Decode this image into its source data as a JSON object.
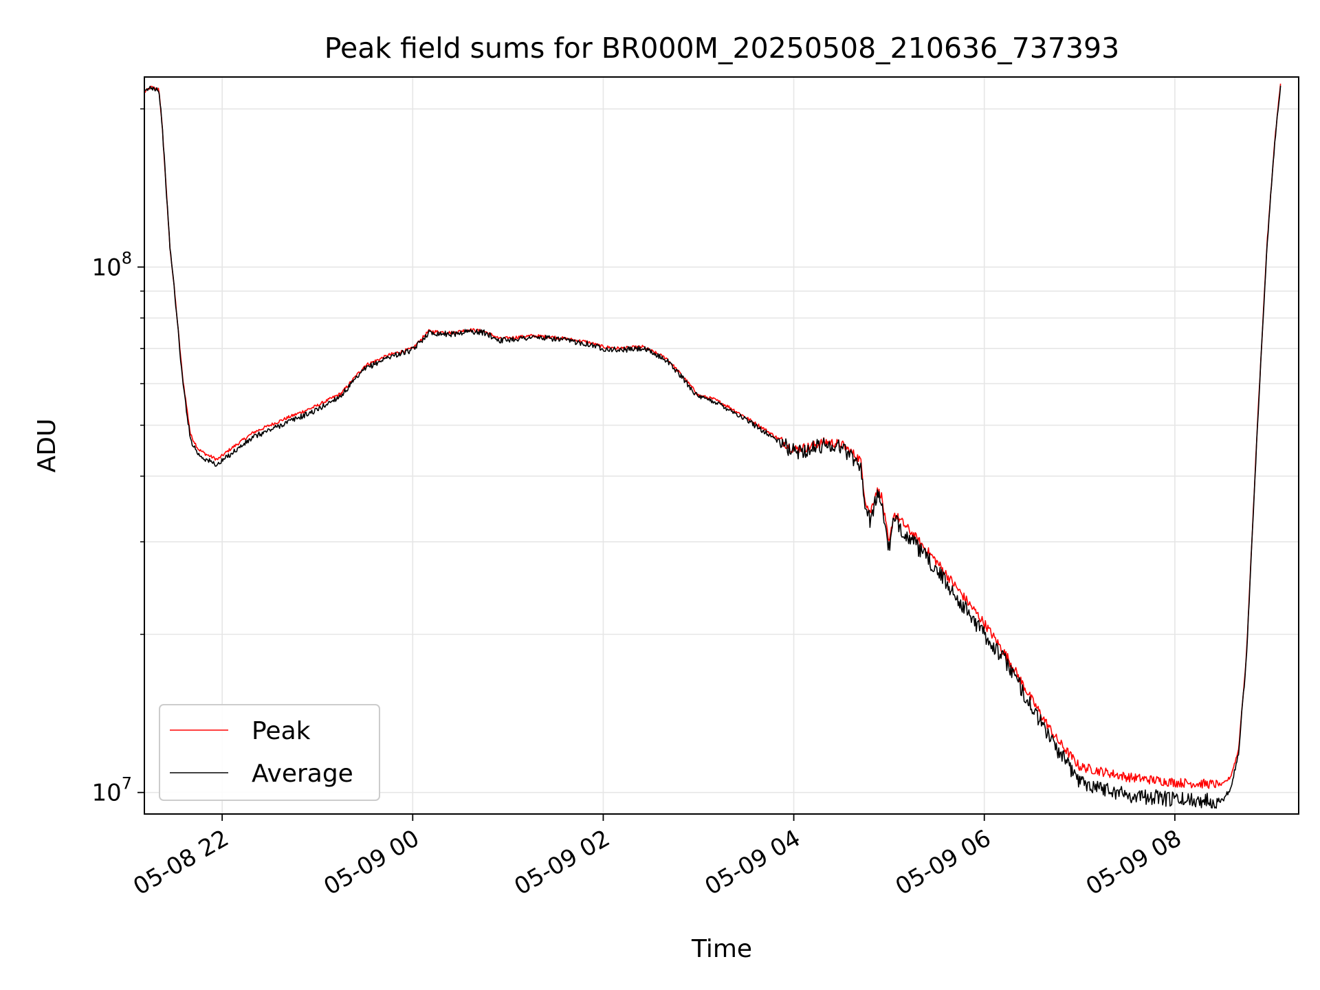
{
  "chart_data": {
    "type": "line",
    "title": "Peak field sums for BR000M_20250508_210636_737393",
    "xlabel": "Time",
    "ylabel": "ADU",
    "y_scale": "log",
    "ylim": [
      9100000,
      230000000
    ],
    "xlim": [
      "2025-05-08 21:11",
      "2025-05-09 09:18"
    ],
    "grid": true,
    "legend_position": "lower-left",
    "x_ticks": [
      {
        "t": "2025-05-08 22:00",
        "label": "05-08 22"
      },
      {
        "t": "2025-05-09 00:00",
        "label": "05-09 00"
      },
      {
        "t": "2025-05-09 02:00",
        "label": "05-09 02"
      },
      {
        "t": "2025-05-09 04:00",
        "label": "05-09 04"
      },
      {
        "t": "2025-05-09 06:00",
        "label": "05-09 06"
      },
      {
        "t": "2025-05-09 08:00",
        "label": "05-09 08"
      }
    ],
    "y_major_ticks": [
      {
        "value": 10000000,
        "base": "10",
        "exp": "7"
      },
      {
        "value": 100000000,
        "base": "10",
        "exp": "8"
      }
    ],
    "y_minor_ticks": [
      20000000,
      30000000,
      40000000,
      50000000,
      60000000,
      70000000,
      80000000,
      90000000,
      200000000
    ],
    "series": [
      {
        "name": "Peak",
        "color": "#ff0000",
        "noise": 0.018,
        "points": [
          [
            "2025-05-08 21:11",
            215000000
          ],
          [
            "2025-05-08 21:15",
            220000000
          ],
          [
            "2025-05-08 21:20",
            218000000
          ],
          [
            "2025-05-08 21:22",
            190000000
          ],
          [
            "2025-05-08 21:27",
            110000000
          ],
          [
            "2025-05-08 21:30",
            90000000
          ],
          [
            "2025-05-08 21:35",
            62000000
          ],
          [
            "2025-05-08 21:40",
            48000000
          ],
          [
            "2025-05-08 21:45",
            45000000
          ],
          [
            "2025-05-08 21:50",
            44000000
          ],
          [
            "2025-05-08 21:57",
            43000000
          ],
          [
            "2025-05-08 22:05",
            45000000
          ],
          [
            "2025-05-08 22:20",
            48500000
          ],
          [
            "2025-05-08 22:40",
            51500000
          ],
          [
            "2025-05-08 23:00",
            54500000
          ],
          [
            "2025-05-08 23:15",
            57500000
          ],
          [
            "2025-05-08 23:30",
            65000000
          ],
          [
            "2025-05-08 23:45",
            68000000
          ],
          [
            "2025-05-09 00:00",
            70000000
          ],
          [
            "2025-05-09 00:10",
            75500000
          ],
          [
            "2025-05-09 00:25",
            75000000
          ],
          [
            "2025-05-09 00:35",
            76000000
          ],
          [
            "2025-05-09 00:45",
            75500000
          ],
          [
            "2025-05-09 00:55",
            73000000
          ],
          [
            "2025-05-09 01:15",
            74000000
          ],
          [
            "2025-05-09 01:30",
            73500000
          ],
          [
            "2025-05-09 01:50",
            72000000
          ],
          [
            "2025-05-09 02:00",
            70500000
          ],
          [
            "2025-05-09 02:10",
            70000000
          ],
          [
            "2025-05-09 02:25",
            70500000
          ],
          [
            "2025-05-09 02:40",
            67000000
          ],
          [
            "2025-05-09 02:50",
            62000000
          ],
          [
            "2025-05-09 03:00",
            57000000
          ],
          [
            "2025-05-09 03:10",
            56000000
          ],
          [
            "2025-05-09 03:20",
            54000000
          ],
          [
            "2025-05-09 03:40",
            49500000
          ],
          [
            "2025-05-09 04:00",
            45000000
          ],
          [
            "2025-05-09 04:10",
            45500000
          ],
          [
            "2025-05-09 04:20",
            46500000
          ],
          [
            "2025-05-09 04:30",
            46000000
          ],
          [
            "2025-05-09 04:42",
            43000000
          ],
          [
            "2025-05-09 04:45",
            36000000
          ],
          [
            "2025-05-09 04:48",
            34000000
          ],
          [
            "2025-05-09 04:52",
            37500000
          ],
          [
            "2025-05-09 04:55",
            37000000
          ],
          [
            "2025-05-09 05:00",
            29500000
          ],
          [
            "2025-05-09 05:03",
            34000000
          ],
          [
            "2025-05-09 05:15",
            31000000
          ],
          [
            "2025-05-09 05:30",
            27500000
          ],
          [
            "2025-05-09 05:45",
            24000000
          ],
          [
            "2025-05-09 06:00",
            21000000
          ],
          [
            "2025-05-09 06:15",
            18000000
          ],
          [
            "2025-05-09 06:30",
            15000000
          ],
          [
            "2025-05-09 06:45",
            12700000
          ],
          [
            "2025-05-09 07:00",
            11200000
          ],
          [
            "2025-05-09 07:30",
            10700000
          ],
          [
            "2025-05-09 08:00",
            10450000
          ],
          [
            "2025-05-09 08:30",
            10350000
          ],
          [
            "2025-05-09 08:35",
            10700000
          ],
          [
            "2025-05-09 08:40",
            12000000
          ],
          [
            "2025-05-09 08:45",
            18000000
          ],
          [
            "2025-05-09 08:52",
            50000000
          ],
          [
            "2025-05-09 08:58",
            110000000
          ],
          [
            "2025-05-09 09:03",
            175000000
          ],
          [
            "2025-05-09 09:07",
            230000000
          ]
        ]
      },
      {
        "name": "Average",
        "color": "#000000",
        "noise": 0.03,
        "points": [
          [
            "2025-05-08 21:11",
            215000000
          ],
          [
            "2025-05-08 21:15",
            220000000
          ],
          [
            "2025-05-08 21:20",
            218000000
          ],
          [
            "2025-05-08 21:22",
            190000000
          ],
          [
            "2025-05-08 21:27",
            110000000
          ],
          [
            "2025-05-08 21:30",
            90000000
          ],
          [
            "2025-05-08 21:35",
            61000000
          ],
          [
            "2025-05-08 21:40",
            47000000
          ],
          [
            "2025-05-08 21:45",
            44000000
          ],
          [
            "2025-05-08 21:50",
            43000000
          ],
          [
            "2025-05-08 21:57",
            42000000
          ],
          [
            "2025-05-08 22:05",
            44000000
          ],
          [
            "2025-05-08 22:20",
            47500000
          ],
          [
            "2025-05-08 22:40",
            50500000
          ],
          [
            "2025-05-08 23:00",
            53500000
          ],
          [
            "2025-05-08 23:15",
            57000000
          ],
          [
            "2025-05-08 23:30",
            64000000
          ],
          [
            "2025-05-08 23:45",
            67500000
          ],
          [
            "2025-05-09 00:00",
            69500000
          ],
          [
            "2025-05-09 00:10",
            75000000
          ],
          [
            "2025-05-09 00:25",
            74500000
          ],
          [
            "2025-05-09 00:35",
            75500000
          ],
          [
            "2025-05-09 00:45",
            75000000
          ],
          [
            "2025-05-09 00:55",
            72500000
          ],
          [
            "2025-05-09 01:15",
            73500000
          ],
          [
            "2025-05-09 01:30",
            73000000
          ],
          [
            "2025-05-09 01:50",
            71500000
          ],
          [
            "2025-05-09 02:00",
            70000000
          ],
          [
            "2025-05-09 02:10",
            69500000
          ],
          [
            "2025-05-09 02:25",
            70000000
          ],
          [
            "2025-05-09 02:40",
            66500000
          ],
          [
            "2025-05-09 02:50",
            61500000
          ],
          [
            "2025-05-09 03:00",
            56500000
          ],
          [
            "2025-05-09 03:10",
            55500000
          ],
          [
            "2025-05-09 03:20",
            53500000
          ],
          [
            "2025-05-09 03:40",
            49000000
          ],
          [
            "2025-05-09 04:00",
            44500000
          ],
          [
            "2025-05-09 04:10",
            45000000
          ],
          [
            "2025-05-09 04:20",
            46000000
          ],
          [
            "2025-05-09 04:30",
            45500000
          ],
          [
            "2025-05-09 04:42",
            42000000
          ],
          [
            "2025-05-09 04:45",
            35000000
          ],
          [
            "2025-05-09 04:48",
            33000000
          ],
          [
            "2025-05-09 04:52",
            36500000
          ],
          [
            "2025-05-09 04:55",
            36000000
          ],
          [
            "2025-05-09 05:00",
            29000000
          ],
          [
            "2025-05-09 05:03",
            33000000
          ],
          [
            "2025-05-09 05:15",
            30000000
          ],
          [
            "2025-05-09 05:30",
            26500000
          ],
          [
            "2025-05-09 05:45",
            23000000
          ],
          [
            "2025-05-09 06:00",
            20000000
          ],
          [
            "2025-05-09 06:15",
            17500000
          ],
          [
            "2025-05-09 06:30",
            14500000
          ],
          [
            "2025-05-09 06:45",
            12200000
          ],
          [
            "2025-05-09 07:00",
            10500000
          ],
          [
            "2025-05-09 07:30",
            9900000
          ],
          [
            "2025-05-09 08:00",
            9700000
          ],
          [
            "2025-05-09 08:30",
            9650000
          ],
          [
            "2025-05-09 08:35",
            10200000
          ],
          [
            "2025-05-09 08:40",
            11800000
          ],
          [
            "2025-05-09 08:45",
            17800000
          ],
          [
            "2025-05-09 08:52",
            49500000
          ],
          [
            "2025-05-09 08:58",
            109000000
          ],
          [
            "2025-05-09 09:03",
            174000000
          ],
          [
            "2025-05-09 09:07",
            229000000
          ]
        ]
      }
    ]
  }
}
